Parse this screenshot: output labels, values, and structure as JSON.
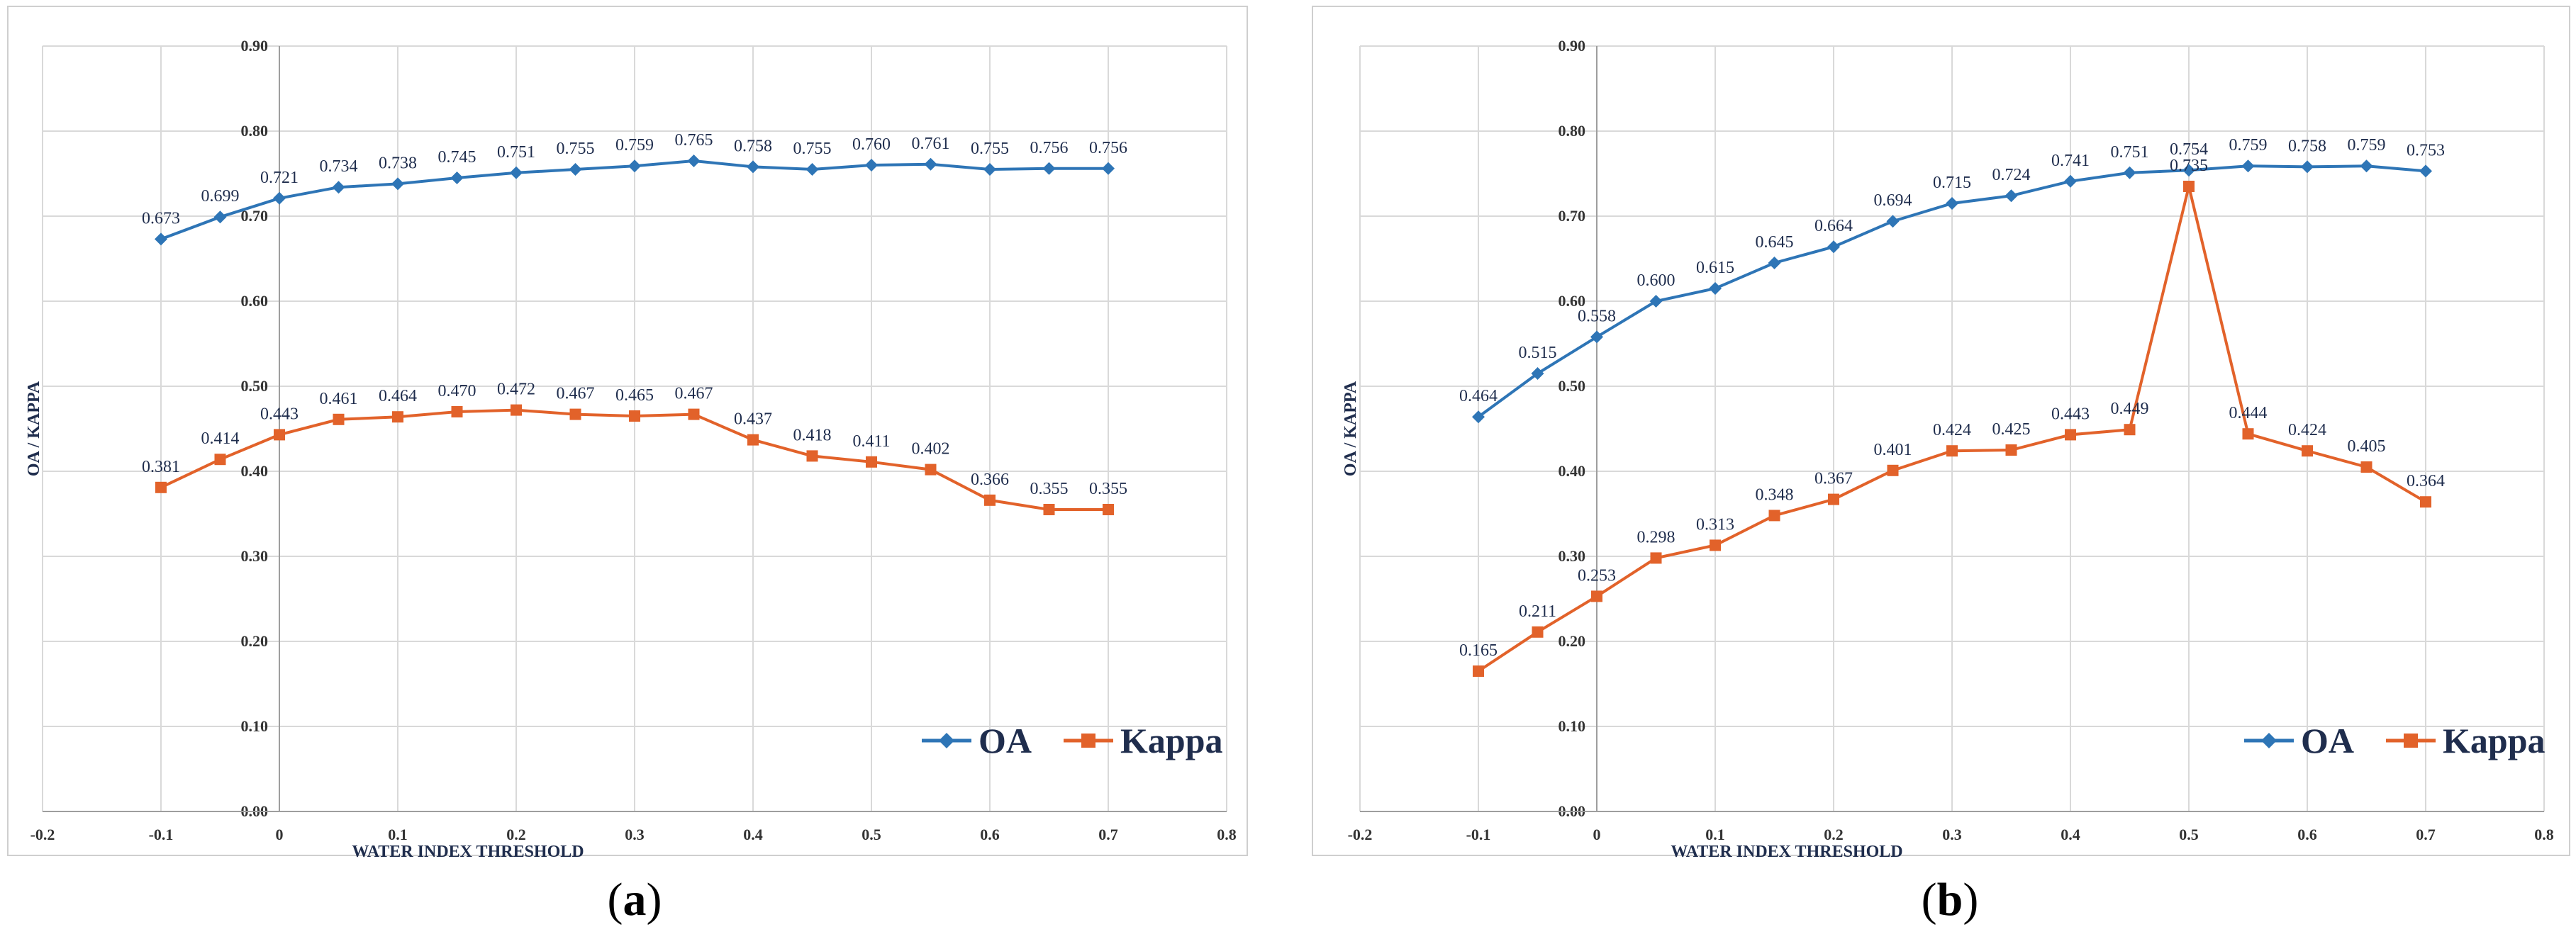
{
  "chart_data": [
    {
      "panel": "(a)",
      "type": "line",
      "xlabel": "WATER INDEX THRESHOLD",
      "ylabel": "OA / KAPPA",
      "xlim": [
        -0.2,
        0.8
      ],
      "ylim": [
        0.0,
        0.9
      ],
      "x_ticks": [
        "-0.2",
        "-0.1",
        "0",
        "0.1",
        "0.2",
        "0.3",
        "0.4",
        "0.5",
        "0.6",
        "0.7",
        "0.8"
      ],
      "y_ticks": [
        "0.00",
        "0.10",
        "0.20",
        "0.30",
        "0.40",
        "0.50",
        "0.60",
        "0.70",
        "0.80",
        "0.90"
      ],
      "legend": [
        "OA",
        "Kappa"
      ],
      "legend_position": "bottom-right",
      "x": [
        -0.1,
        -0.05,
        0,
        0.05,
        0.1,
        0.15,
        0.2,
        0.25,
        0.3,
        0.35,
        0.4,
        0.45,
        0.5,
        0.55,
        0.6,
        0.65,
        0.7
      ],
      "series": [
        {
          "name": "OA",
          "color": "#2e75b6",
          "marker": "diamond",
          "values": [
            0.673,
            0.699,
            0.721,
            0.734,
            0.738,
            0.745,
            0.751,
            0.755,
            0.759,
            0.765,
            0.758,
            0.755,
            0.76,
            0.761,
            0.755,
            0.756,
            0.756
          ],
          "labels": [
            "0.673",
            "0.699",
            "0.721",
            "0.734",
            "0.738",
            "0.745",
            "0.751",
            "0.755",
            "0.759",
            "0.765",
            "0.758",
            "0.755",
            "0.760",
            "0.761",
            "0.755",
            "0.756",
            "0.756"
          ]
        },
        {
          "name": "Kappa",
          "color": "#e2622a",
          "marker": "square",
          "values": [
            0.381,
            0.414,
            0.443,
            0.461,
            0.464,
            0.47,
            0.472,
            0.467,
            0.465,
            0.467,
            0.437,
            0.418,
            0.411,
            0.402,
            0.366,
            0.355,
            0.355
          ],
          "labels": [
            "0.381",
            "0.414",
            "0.443",
            "0.461",
            "0.464",
            "0.470",
            "0.472",
            "0.467",
            "0.465",
            "0.467",
            "0.437",
            "0.418",
            "0.411",
            "0.402",
            "0.366",
            "0.355",
            "0.355"
          ]
        }
      ]
    },
    {
      "panel": "(b)",
      "type": "line",
      "xlabel": "WATER INDEX THRESHOLD",
      "ylabel": "OA / KAPPA",
      "xlim": [
        -0.2,
        0.8
      ],
      "ylim": [
        0.0,
        0.9
      ],
      "x_ticks": [
        "-0.2",
        "-0.1",
        "0",
        "0.1",
        "0.2",
        "0.3",
        "0.4",
        "0.5",
        "0.6",
        "0.7",
        "0.8"
      ],
      "y_ticks": [
        "0.00",
        "0.10",
        "0.20",
        "0.30",
        "0.40",
        "0.50",
        "0.60",
        "0.70",
        "0.80",
        "0.90"
      ],
      "legend": [
        "OA",
        "Kappa"
      ],
      "legend_position": "bottom-right",
      "x": [
        -0.1,
        -0.05,
        0,
        0.05,
        0.1,
        0.15,
        0.2,
        0.25,
        0.3,
        0.35,
        0.4,
        0.45,
        0.5,
        0.55,
        0.6,
        0.65,
        0.7
      ],
      "series": [
        {
          "name": "OA",
          "color": "#2e75b6",
          "marker": "diamond",
          "values": [
            0.464,
            0.515,
            0.558,
            0.6,
            0.615,
            0.645,
            0.664,
            0.694,
            0.715,
            0.724,
            0.741,
            0.751,
            0.754,
            0.759,
            0.758,
            0.759,
            0.753
          ],
          "labels": [
            "0.464",
            "0.515",
            "0.558",
            "0.600",
            "0.615",
            "0.645",
            "0.664",
            "0.694",
            "0.715",
            "0.724",
            "0.741",
            "0.751",
            "0.754",
            "0.759",
            "0.758",
            "0.759",
            "0.753"
          ]
        },
        {
          "name": "Kappa",
          "color": "#e2622a",
          "marker": "square",
          "values": [
            0.165,
            0.211,
            0.253,
            0.298,
            0.313,
            0.348,
            0.367,
            0.401,
            0.424,
            0.425,
            0.443,
            0.449,
            0.735,
            0.444,
            0.424,
            0.405,
            0.364
          ],
          "labels": [
            "0.165",
            "0.211",
            "0.253",
            "0.298",
            "0.313",
            "0.348",
            "0.367",
            "0.401",
            "0.424",
            "0.425",
            "0.443",
            "0.449",
            "0.735",
            "0.444",
            "0.424",
            "0.405",
            "0.364"
          ]
        }
      ]
    }
  ],
  "panels": {
    "a_label": "a",
    "b_label": "b"
  }
}
